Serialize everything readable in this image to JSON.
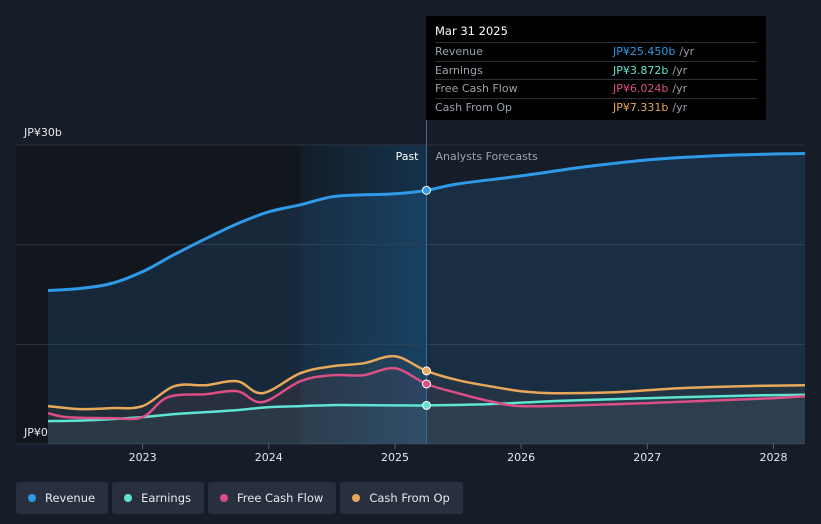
{
  "chart_data": {
    "type": "area",
    "y_top_label": "JP¥30b",
    "y_bottom_label": "JP¥0",
    "ylim": [
      0,
      30
    ],
    "xlim": [
      2022.25,
      2028.25
    ],
    "x_ticks": [
      {
        "value": 2023,
        "label": "2023"
      },
      {
        "value": 2024,
        "label": "2024"
      },
      {
        "value": 2025,
        "label": "2025"
      },
      {
        "value": 2026,
        "label": "2026"
      },
      {
        "value": 2027,
        "label": "2027"
      },
      {
        "value": 2028,
        "label": "2028"
      }
    ],
    "past_label": "Past",
    "forecast_label": "Analysts Forecasts",
    "divider_x": 2025.25,
    "highlight_start_x": 2024.25,
    "series": [
      {
        "name": "Revenue",
        "color": "#2f9ae8",
        "fill": true,
        "points": [
          [
            2022.25,
            15.4
          ],
          [
            2022.5,
            15.6
          ],
          [
            2022.75,
            16.1
          ],
          [
            2023,
            17.3
          ],
          [
            2023.25,
            19.0
          ],
          [
            2023.5,
            20.6
          ],
          [
            2023.75,
            22.1
          ],
          [
            2024,
            23.3
          ],
          [
            2024.25,
            24.0
          ],
          [
            2024.5,
            24.8
          ],
          [
            2024.75,
            25.0
          ],
          [
            2025,
            25.1
          ],
          [
            2025.25,
            25.45
          ],
          [
            2025.5,
            26.1
          ],
          [
            2026,
            26.9
          ],
          [
            2026.5,
            27.8
          ],
          [
            2027,
            28.5
          ],
          [
            2027.5,
            28.9
          ],
          [
            2028,
            29.1
          ],
          [
            2028.25,
            29.15
          ]
        ]
      },
      {
        "name": "Earnings",
        "color": "#5fe3d2",
        "fill": false,
        "points": [
          [
            2022.25,
            2.3
          ],
          [
            2022.5,
            2.35
          ],
          [
            2022.75,
            2.5
          ],
          [
            2023,
            2.7
          ],
          [
            2023.25,
            3.0
          ],
          [
            2023.5,
            3.2
          ],
          [
            2023.75,
            3.4
          ],
          [
            2024,
            3.7
          ],
          [
            2024.25,
            3.8
          ],
          [
            2024.5,
            3.9
          ],
          [
            2024.75,
            3.9
          ],
          [
            2025,
            3.87
          ],
          [
            2025.25,
            3.872
          ],
          [
            2025.75,
            4.0
          ],
          [
            2026.25,
            4.3
          ],
          [
            2026.75,
            4.5
          ],
          [
            2027.25,
            4.7
          ],
          [
            2027.75,
            4.85
          ],
          [
            2028.25,
            4.95
          ]
        ]
      },
      {
        "name": "Free Cash Flow",
        "color": "#d94f86",
        "fill": false,
        "points": [
          [
            2022.25,
            3.1
          ],
          [
            2022.4,
            2.7
          ],
          [
            2022.75,
            2.6
          ],
          [
            2023,
            2.7
          ],
          [
            2023.2,
            4.7
          ],
          [
            2023.5,
            5.0
          ],
          [
            2023.75,
            5.3
          ],
          [
            2023.95,
            4.2
          ],
          [
            2024.25,
            6.3
          ],
          [
            2024.5,
            6.9
          ],
          [
            2024.75,
            6.9
          ],
          [
            2025,
            7.6
          ],
          [
            2025.25,
            6.024
          ],
          [
            2025.5,
            5.1
          ],
          [
            2025.75,
            4.3
          ],
          [
            2026,
            3.8
          ],
          [
            2026.5,
            3.9
          ],
          [
            2027,
            4.1
          ],
          [
            2027.5,
            4.35
          ],
          [
            2028,
            4.6
          ],
          [
            2028.25,
            4.8
          ]
        ]
      },
      {
        "name": "Cash From Op",
        "color": "#e8a85a",
        "fill": false,
        "points": [
          [
            2022.25,
            3.8
          ],
          [
            2022.5,
            3.5
          ],
          [
            2022.75,
            3.6
          ],
          [
            2023,
            3.8
          ],
          [
            2023.25,
            5.8
          ],
          [
            2023.5,
            5.9
          ],
          [
            2023.75,
            6.3
          ],
          [
            2023.95,
            5.1
          ],
          [
            2024.25,
            7.1
          ],
          [
            2024.5,
            7.8
          ],
          [
            2024.75,
            8.1
          ],
          [
            2025,
            8.8
          ],
          [
            2025.25,
            7.331
          ],
          [
            2025.5,
            6.4
          ],
          [
            2025.75,
            5.8
          ],
          [
            2026,
            5.3
          ],
          [
            2026.25,
            5.1
          ],
          [
            2026.75,
            5.2
          ],
          [
            2027.25,
            5.6
          ],
          [
            2027.75,
            5.8
          ],
          [
            2028.25,
            5.9
          ]
        ]
      }
    ]
  },
  "tooltip": {
    "date": "Mar 31 2025",
    "rows": [
      {
        "name": "Revenue",
        "value": "JP¥25.450b",
        "unit": "/yr",
        "color": "#2f9ae8"
      },
      {
        "name": "Earnings",
        "value": "JP¥3.872b",
        "unit": "/yr",
        "color": "#5fe3d2"
      },
      {
        "name": "Free Cash Flow",
        "value": "JP¥6.024b",
        "unit": "/yr",
        "color": "#d94f86"
      },
      {
        "name": "Cash From Op",
        "value": "JP¥7.331b",
        "unit": "/yr",
        "color": "#e8a85a"
      }
    ]
  },
  "legend": [
    {
      "label": "Revenue",
      "color": "#2f9ae8"
    },
    {
      "label": "Earnings",
      "color": "#5fe3d2"
    },
    {
      "label": "Free Cash Flow",
      "color": "#d94f86"
    },
    {
      "label": "Cash From Op",
      "color": "#e8a85a"
    }
  ]
}
